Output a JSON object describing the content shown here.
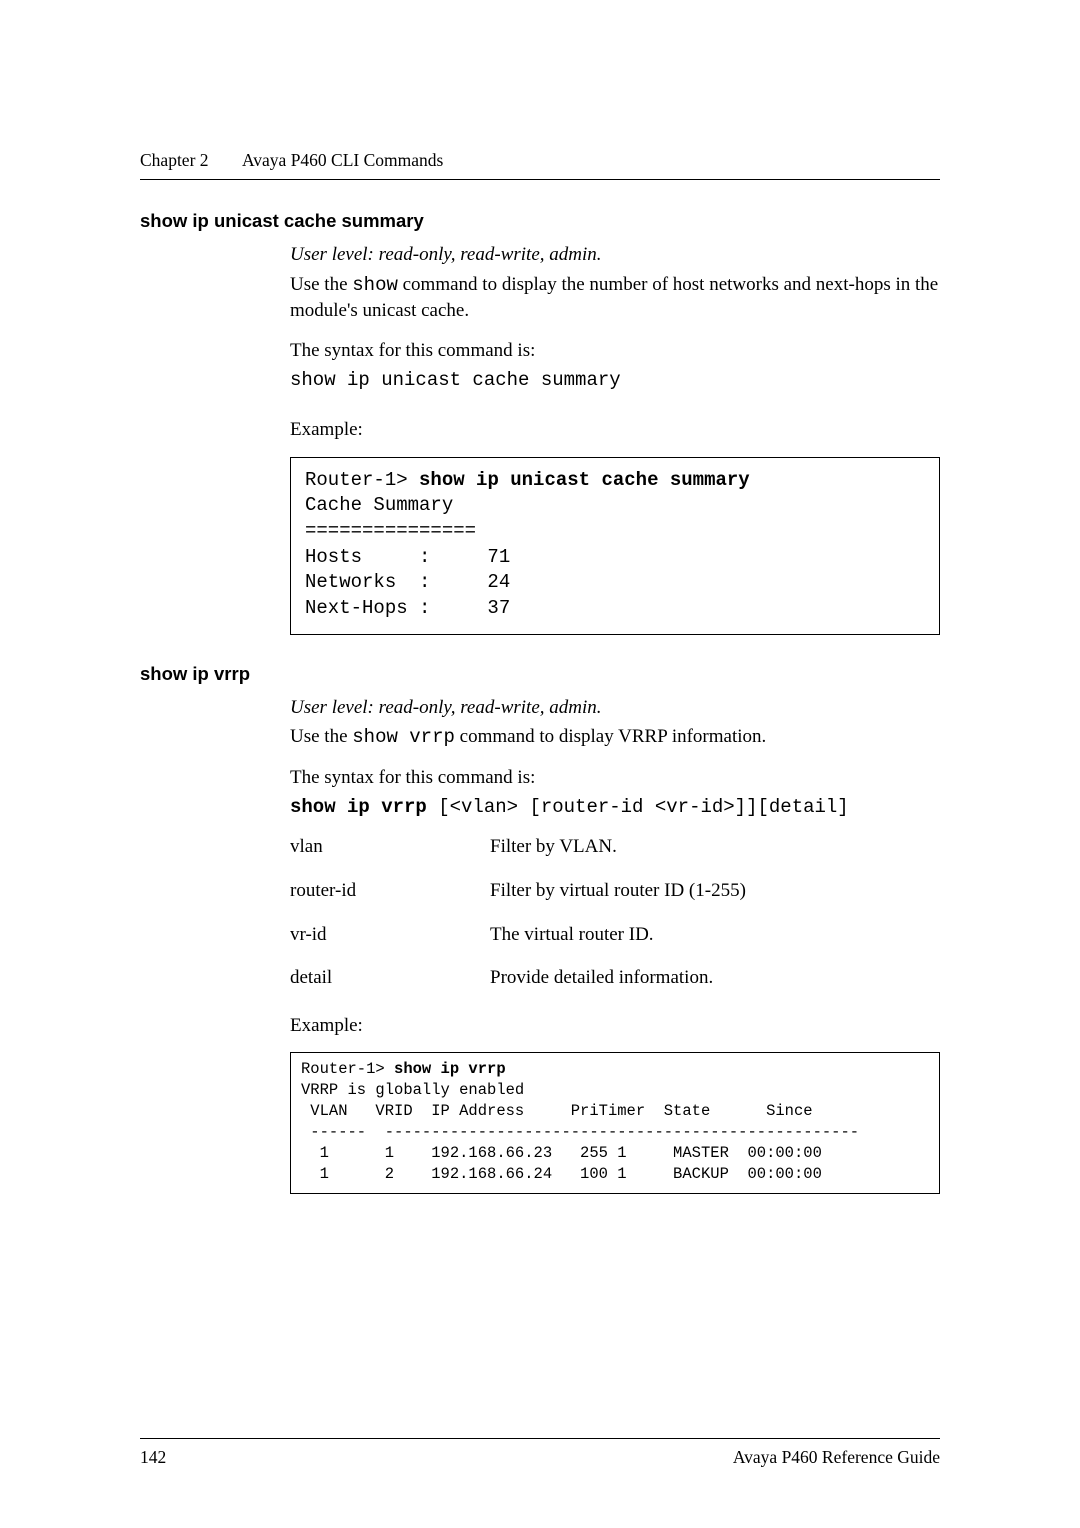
{
  "header": {
    "chapter_label": "Chapter 2",
    "chapter_title": "Avaya P460 CLI Commands"
  },
  "section1": {
    "heading": "show ip unicast cache summary",
    "user_level": "User level: read-only, read-write, admin.",
    "desc_prefix": "Use the ",
    "desc_mono": "show",
    "desc_suffix": " command to display the number of host networks and next-hops in the module's unicast cache.",
    "syntax_label": "The syntax for this command is:",
    "syntax_cmd": "show ip unicast cache summary",
    "example_label": "Example:",
    "code": {
      "prompt": "Router-1> ",
      "bold_cmd": "show ip unicast cache summary",
      "l2": "Cache Summary",
      "l3": "===============",
      "l4": "Hosts     :     71",
      "l5": "Networks  :     24",
      "l6": "Next-Hops :     37"
    }
  },
  "section2": {
    "heading": "show ip vrrp",
    "user_level": "User level: read-only, read-write, admin.",
    "desc_prefix": "Use the ",
    "desc_mono": "show vrrp",
    "desc_suffix": " command to display VRRP information.",
    "syntax_label": "The syntax for this command is:",
    "syntax_bold": "show ip vrrp",
    "syntax_rest": " [<vlan> [router-id <vr-id>]][detail]",
    "defs": [
      {
        "term": "vlan",
        "def": "Filter by VLAN."
      },
      {
        "term": "router-id",
        "def": "Filter by virtual router ID (1-255)"
      },
      {
        "term": "vr-id",
        "def": "The virtual router ID."
      },
      {
        "term": "detail",
        "def": "Provide detailed information."
      }
    ],
    "example_label": "Example:",
    "code2": {
      "prompt": "Router-1> ",
      "bold_cmd": "show ip vrrp",
      "l2": "VRRP is globally enabled",
      "l3": " VLAN   VRID  IP Address     PriTimer  State      Since",
      "l4": " ------  ---------------------------------------------------",
      "l5": "  1      1    192.168.66.23   255 1     MASTER  00:00:00",
      "l6": "  1      2    192.168.66.24   100 1     BACKUP  00:00:00"
    }
  },
  "footer": {
    "page_num": "142",
    "book": "Avaya P460 Reference Guide"
  },
  "colors": {
    "text": "#000000",
    "background": "#ffffff",
    "rule": "#000000"
  },
  "typography": {
    "body_font": "Georgia serif",
    "heading_font": "Arial sans-serif",
    "mono_font": "Courier New",
    "body_size_pt": 14,
    "heading_size_pt": 14,
    "mono_size_pt": 13
  }
}
